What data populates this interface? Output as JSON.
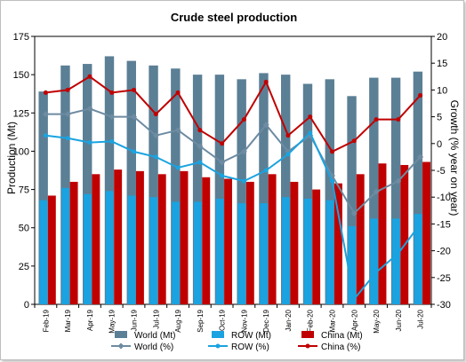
{
  "chart_data": {
    "type": "bar",
    "title": "Crude steel production",
    "ylabel": "Production (Mt)",
    "y2label": "Growth (% year on year)",
    "categories": [
      "Feb-19",
      "Mar-19",
      "Apr-19",
      "May-19",
      "Jun-19",
      "Jul-19",
      "Aug-19",
      "Sep-19",
      "Oct-19",
      "Nov-19",
      "Dec-19",
      "Jan-20",
      "Feb-20",
      "Mar-20",
      "Apr-20",
      "May-20",
      "Jun-20",
      "Jul-20"
    ],
    "ylim": [
      0,
      175
    ],
    "yticks": [
      0,
      25,
      50,
      75,
      100,
      125,
      150,
      175
    ],
    "y2lim": [
      -30,
      20
    ],
    "y2ticks": [
      -30,
      -25,
      -20,
      -15,
      -10,
      -5,
      0,
      5,
      10,
      15,
      20
    ],
    "bar_series": [
      {
        "name": "World (Mt)",
        "color": "#5b7f95",
        "values": [
          139,
          156,
          157,
          162,
          159,
          156,
          154,
          150,
          150,
          147,
          151,
          150,
          144,
          147,
          136,
          148,
          148,
          152
        ]
      },
      {
        "name": "ROW (Mt)",
        "color": "#1aa3e0",
        "values": [
          68,
          76,
          72,
          74,
          71,
          70,
          67,
          67,
          69,
          66,
          66,
          70,
          69,
          68,
          51,
          56,
          56,
          59
        ]
      },
      {
        "name": "China (Mt)",
        "color": "#c00000",
        "values": [
          71,
          80,
          85,
          88,
          87,
          85,
          87,
          83,
          82,
          80,
          85,
          80,
          75,
          79,
          85,
          92,
          91,
          93
        ]
      }
    ],
    "line_series": [
      {
        "name": "World (%)",
        "color": "#6d8ba1",
        "marker": "diamond",
        "values": [
          5.5,
          5.5,
          6.5,
          5.0,
          5.0,
          1.5,
          2.5,
          -0.5,
          -3.5,
          -1.5,
          3.5,
          -1.5,
          1.5,
          -6.0,
          -13.0,
          -9.0,
          -7.0,
          -2.5
        ]
      },
      {
        "name": "ROW (%)",
        "color": "#1aa3e0",
        "marker": "circle",
        "values": [
          1.5,
          1.0,
          0.2,
          0.4,
          -1.5,
          -2.5,
          -4.5,
          -3.5,
          -6.0,
          -7.0,
          -5.0,
          -2.0,
          2.0,
          -7.0,
          -29.0,
          -24.0,
          -20.5,
          -15.0
        ]
      },
      {
        "name": "China (%)",
        "color": "#c00000",
        "marker": "circle",
        "values": [
          9.5,
          10.0,
          12.5,
          9.5,
          10.0,
          5.5,
          9.5,
          2.5,
          0.0,
          4.5,
          11.5,
          1.5,
          5.0,
          -1.5,
          0.5,
          4.5,
          4.5,
          9.0
        ]
      }
    ],
    "legend": [
      {
        "label": "World (Mt)",
        "kind": "bar",
        "color": "#5b7f95"
      },
      {
        "label": "ROW (Mt)",
        "kind": "bar",
        "color": "#1aa3e0"
      },
      {
        "label": "China (Mt)",
        "kind": "bar",
        "color": "#c00000"
      },
      {
        "label": "World (%)",
        "kind": "line",
        "color": "#6d8ba1",
        "marker": "diamond"
      },
      {
        "label": "ROW (%)",
        "kind": "line",
        "color": "#1aa3e0",
        "marker": "circle"
      },
      {
        "label": "China (%)",
        "kind": "line",
        "color": "#c00000",
        "marker": "circle"
      }
    ],
    "grid": false,
    "legend_placement": "bottom"
  }
}
